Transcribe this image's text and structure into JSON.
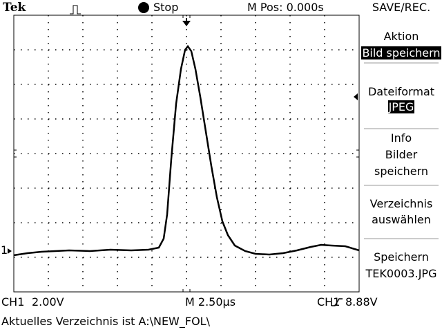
{
  "header": {
    "brand": "Tek",
    "status": "Stop",
    "position": "M Pos: 0.000s",
    "menu_title": "SAVE/REC."
  },
  "menu": [
    {
      "label": [
        "Aktion"
      ],
      "value": "Bild speichern"
    },
    {
      "label": [
        "Dateiformat"
      ],
      "value": "JPEG"
    },
    {
      "label": [
        "Info",
        "Bilder",
        "speichern"
      ]
    },
    {
      "label": [
        "Verzeichnis",
        "auswählen"
      ]
    },
    {
      "label": [
        "Speichern",
        "TEK0003.JPG"
      ]
    }
  ],
  "graticule": {
    "ground_marker": "1"
  },
  "footer": {
    "channel": "CH1",
    "volts_per_div": "2.00V",
    "timebase": "M 2.50µs",
    "trigger_source": "CH1",
    "trigger_level": "8.88V",
    "message": "Aktuelles Verzeichnis ist A:\\NEW_FOL\\"
  }
}
